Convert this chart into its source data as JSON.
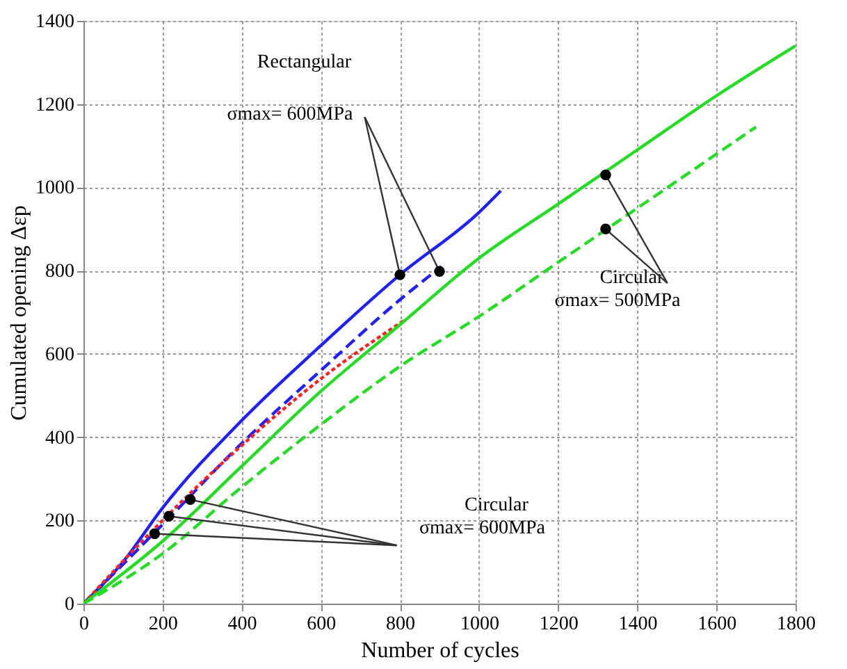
{
  "chart_data": {
    "type": "line",
    "xlabel": "Number of cycles",
    "ylabel": "Cumulated opening Δεp",
    "xlim": [
      0,
      1800
    ],
    "xticks": [
      0,
      200,
      400,
      600,
      800,
      1000,
      1200,
      1400,
      1600,
      1800
    ],
    "ylim": [
      0,
      1400
    ],
    "yticks": [
      0,
      200,
      400,
      600,
      800,
      1000,
      1200,
      1400
    ],
    "grid": true,
    "marker": "none",
    "annotations": [
      "Rectangular",
      {
        "text": "σmax= 600MPa",
        "x": 800,
        "y": 790
      },
      {
        "text": "Circular",
        "x": 1320,
        "y": 1030
      },
      {
        "text": "σmax= 500MPa",
        "x": 1320,
        "y": 900
      },
      "Circular",
      {
        "text": "σmax= 600MPa",
        "x": 270,
        "y": 250
      }
    ],
    "series": [
      {
        "color": "#1f1fff",
        "line_style": "solid",
        "x": [
          0,
          100,
          200,
          400,
          600,
          800,
          1000,
          1055
        ],
        "values": [
          0,
          100,
          230,
          440,
          620,
          790,
          940,
          992
        ]
      },
      {
        "color": "#1f1fff",
        "line_style": "dashed",
        "x": [
          0,
          200,
          400,
          600,
          800,
          905
        ],
        "values": [
          0,
          190,
          385,
          560,
          730,
          810
        ]
      },
      {
        "color": "#ff2020",
        "line_style": "dotted",
        "x": [
          0,
          200,
          400,
          600,
          810
        ],
        "values": [
          0,
          200,
          380,
          540,
          680
        ]
      },
      {
        "color": "#22dd22",
        "line_style": "solid",
        "x": [
          0,
          200,
          400,
          600,
          800,
          1000,
          1200,
          1400,
          1600,
          1800
        ],
        "values": [
          0,
          150,
          330,
          510,
          670,
          830,
          960,
          1090,
          1220,
          1340
        ]
      },
      {
        "color": "#22dd22",
        "line_style": "dashed",
        "x": [
          0,
          200,
          400,
          600,
          800,
          1000,
          1200,
          1400,
          1700
        ],
        "values": [
          0,
          120,
          280,
          430,
          570,
          690,
          820,
          950,
          1145
        ]
      }
    ]
  }
}
